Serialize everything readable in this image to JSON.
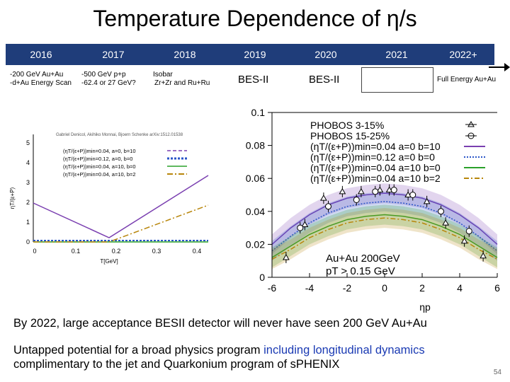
{
  "title": "Temperature Dependence of η/s",
  "timeline": {
    "years": [
      "2016",
      "2017",
      "2018",
      "2019",
      "2020",
      "2021",
      "2022+"
    ],
    "notes": {
      "y2016": [
        "-200 GeV Au+Au",
        "-d+Au Energy Scan"
      ],
      "y2017": [
        "-500 GeV p+p",
        "-62.4 or 27 GeV?"
      ],
      "y2018": [
        "Isobar",
        "Zr+Zr and Ru+Ru"
      ],
      "y2019": "BES-II",
      "y2020": "BES-II",
      "y2022": "Full Energy Au+Au"
    },
    "bar_color": "#1f3d7a"
  },
  "left_plot": {
    "citation": "Gabriel Denicol, Akihiko Monnai, Bjoern Schenke arXiv:1512.01538",
    "ylabel": "ηT/(ε+P)",
    "xlabel": "T[GeV]",
    "y_ticks": [
      "5",
      "4",
      "3",
      "2",
      "1",
      "0"
    ],
    "x_ticks": [
      "0",
      "0.1",
      "0.2",
      "0.3",
      "0.4"
    ],
    "legend": [
      {
        "label": "(ηT/(ε+P))min=0.04, a=0, b=10",
        "color": "#7a3fb0"
      },
      {
        "label": "(ηT/(ε+P))min=0.12, a=0, b=0",
        "color": "#2a55c8"
      },
      {
        "label": "(ηT/(ε+P))min=0.04, a=10, b=0",
        "color": "#2aa02a"
      },
      {
        "label": "(ηT/(ε+P))min=0.04, a=10, b=2",
        "color": "#b8860b"
      }
    ]
  },
  "chart_data": {
    "type": "scatter",
    "xlabel": "ηp",
    "ylim": [
      0,
      0.1
    ],
    "xlim": [
      -6,
      6
    ],
    "y_ticks": [
      "0",
      "0.02",
      "0.04",
      "0.06",
      "0.08",
      "0.1"
    ],
    "x_ticks": [
      "-6",
      "-4",
      "-2",
      "0",
      "2",
      "4",
      "6"
    ],
    "annotation": [
      "Au+Au 200GeV",
      "pT > 0.15 GeV"
    ],
    "legend": [
      {
        "label": "PHOBOS 3-15%",
        "marker": "triangle"
      },
      {
        "label": "PHOBOS 15-25%",
        "marker": "circle"
      },
      {
        "label": "(ηT/(ε+P))min=0.04 a=0 b=10",
        "color": "#7a3fb0"
      },
      {
        "label": "(ηT/(ε+P))min=0.12 a=0 b=0",
        "color": "#2a55c8"
      },
      {
        "label": "(ηT/(ε+P))min=0.04 a=10 b=0",
        "color": "#2aa02a"
      },
      {
        "label": "(ηT/(ε+P))min=0.04 a=10 b=2",
        "color": "#b8860b"
      }
    ],
    "series": [
      {
        "name": "PHOBOS 3-15%",
        "marker": "triangle",
        "x": [
          -5.25,
          -4.25,
          -3.25,
          -2.25,
          -1.25,
          -0.25,
          0.25,
          1.25,
          2.25,
          3.25,
          4.25,
          5.25
        ],
        "y": [
          0.012,
          0.032,
          0.048,
          0.052,
          0.052,
          0.053,
          0.053,
          0.05,
          0.046,
          0.033,
          0.022,
          0.013
        ]
      },
      {
        "name": "PHOBOS 15-25%",
        "marker": "circle",
        "x": [
          -4.5,
          -3.0,
          -1.5,
          -0.5,
          0.5,
          1.5,
          3.0,
          4.5
        ],
        "y": [
          0.03,
          0.043,
          0.047,
          0.052,
          0.053,
          0.05,
          0.04,
          0.028
        ]
      },
      {
        "name": "(ηT/(ε+P))min=0.04 a=0 b=10",
        "color": "#7a3fb0",
        "x": [
          -6,
          -5,
          -4,
          -3,
          -2,
          -1,
          0,
          1,
          2,
          3,
          4,
          5,
          6
        ],
        "y": [
          0.02,
          0.03,
          0.038,
          0.044,
          0.048,
          0.05,
          0.051,
          0.05,
          0.048,
          0.044,
          0.038,
          0.03,
          0.02
        ]
      },
      {
        "name": "(ηT/(ε+P))min=0.12 a=0 b=0",
        "color": "#2a55c8",
        "x": [
          -6,
          -5,
          -4,
          -3,
          -2,
          -1,
          0,
          1,
          2,
          3,
          4,
          5,
          6
        ],
        "y": [
          0.016,
          0.025,
          0.033,
          0.039,
          0.043,
          0.045,
          0.046,
          0.045,
          0.043,
          0.039,
          0.033,
          0.025,
          0.016
        ]
      },
      {
        "name": "(ηT/(ε+P))min=0.04 a=10 b=0",
        "color": "#2aa02a",
        "x": [
          -6,
          -5,
          -4,
          -3,
          -2,
          -1,
          0,
          1,
          2,
          3,
          4,
          5,
          6
        ],
        "y": [
          0.012,
          0.019,
          0.026,
          0.031,
          0.035,
          0.037,
          0.038,
          0.037,
          0.035,
          0.031,
          0.026,
          0.019,
          0.012
        ]
      },
      {
        "name": "(ηT/(ε+P))min=0.04 a=10 b=2",
        "color": "#b8860b",
        "x": [
          -6,
          -5,
          -4,
          -3,
          -2,
          -1,
          0,
          1,
          2,
          3,
          4,
          5,
          6
        ],
        "y": [
          0.011,
          0.017,
          0.024,
          0.029,
          0.033,
          0.035,
          0.036,
          0.035,
          0.033,
          0.029,
          0.024,
          0.017,
          0.011
        ]
      }
    ]
  },
  "captions": {
    "line1": "By 2022, large acceptance BESII detector will never have seen 200 GeV Au+Au",
    "line2_a": "Untapped potential for a broad physics program ",
    "line2_b": "including longitudinal dynamics",
    "line3": "complimentary to the jet and Quarkonium program of sPHENIX"
  },
  "slide_number": "54"
}
